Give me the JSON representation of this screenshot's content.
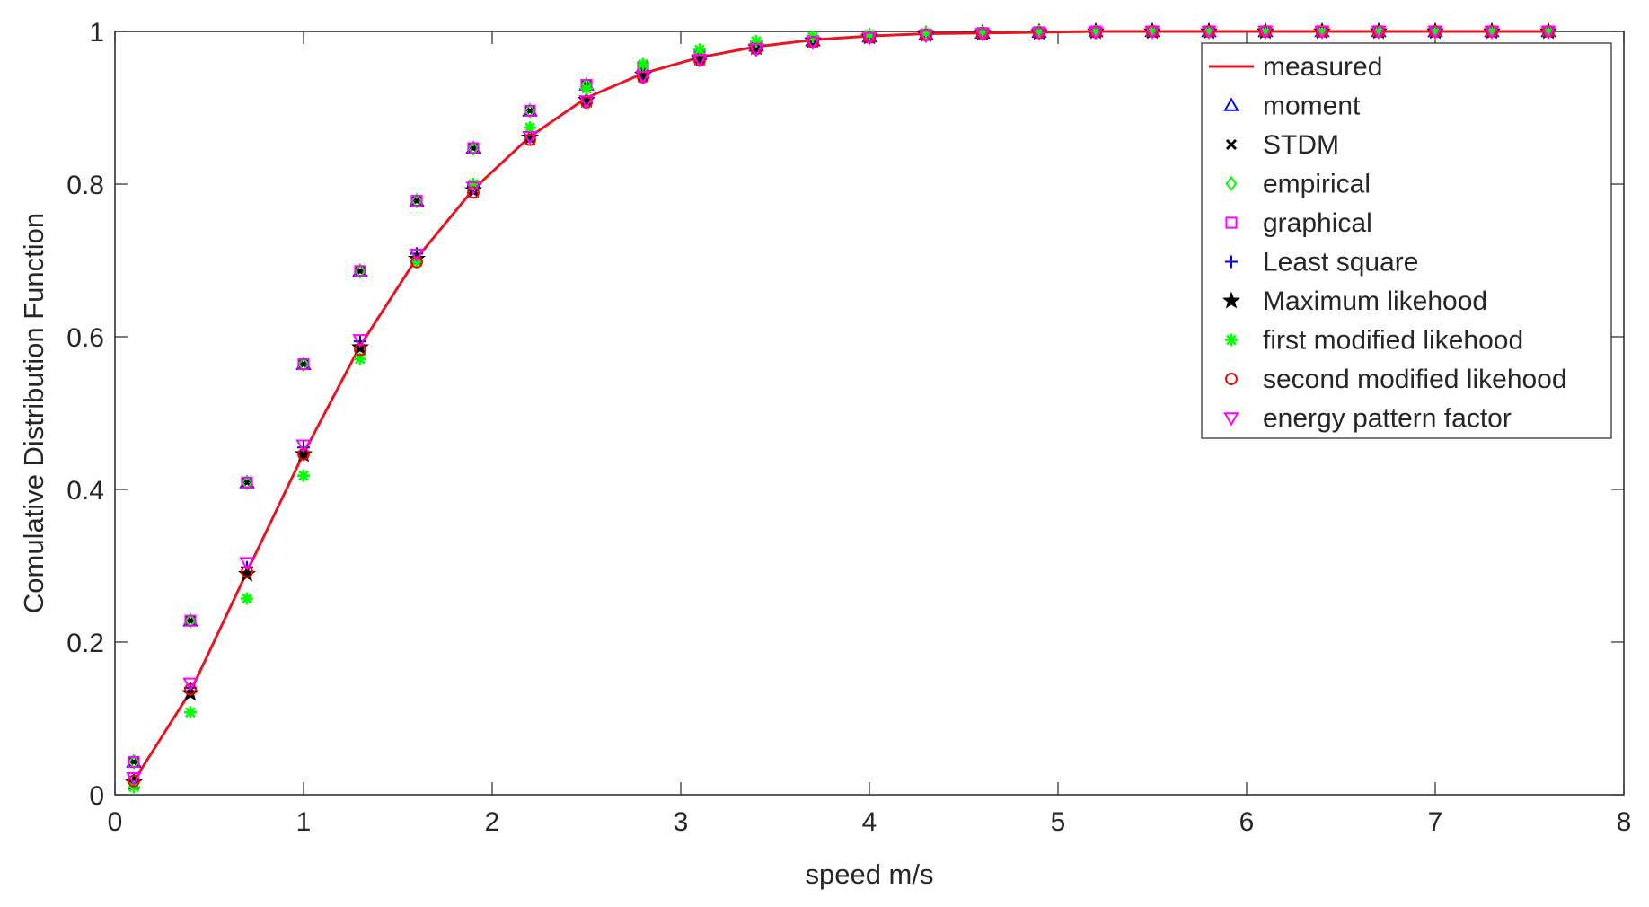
{
  "chart_data": {
    "type": "scatter",
    "xlabel": "speed m/s",
    "ylabel": "Comulative Distribution Function",
    "xlim": [
      0,
      8
    ],
    "ylim": [
      0,
      1
    ],
    "xticks": [
      0,
      1,
      2,
      3,
      4,
      5,
      6,
      7,
      8
    ],
    "yticks": [
      0,
      0.2,
      0.4,
      0.6,
      0.8,
      1
    ],
    "xtick_labels": [
      "0",
      "1",
      "2",
      "3",
      "4",
      "5",
      "6",
      "7",
      "8"
    ],
    "ytick_labels": [
      "0",
      "0.2",
      "0.4",
      "0.6",
      "0.8",
      "1"
    ],
    "grid": false,
    "legend_position": "top-right",
    "x": [
      0.1,
      0.4,
      0.7,
      1.0,
      1.3,
      1.6,
      1.9,
      2.2,
      2.5,
      2.8,
      3.1,
      3.4,
      3.7,
      4.0,
      4.3,
      4.6,
      4.9,
      5.2,
      5.5,
      5.8,
      6.1,
      6.4,
      6.7,
      7.0,
      7.3,
      7.6
    ],
    "series": [
      {
        "name": "measured",
        "style": "line",
        "color": "#e8141e",
        "values": [
          0.018,
          0.135,
          0.292,
          0.447,
          0.588,
          0.703,
          0.793,
          0.862,
          0.913,
          0.945,
          0.966,
          0.98,
          0.989,
          0.994,
          0.997,
          0.998,
          0.999,
          1.0,
          1.0,
          1.0,
          1.0,
          1.0,
          1.0,
          1.0,
          1.0,
          1.0
        ]
      },
      {
        "name": "moment",
        "style": "marker",
        "marker": "triangle-up",
        "color": "#0000ff",
        "values": [
          0.043,
          0.228,
          0.409,
          0.564,
          0.686,
          0.778,
          0.847,
          0.896,
          0.93,
          0.953,
          0.97,
          0.981,
          0.988,
          0.993,
          0.996,
          0.998,
          0.999,
          1.0,
          1.0,
          1.0,
          1.0,
          1.0,
          1.0,
          1.0,
          1.0,
          1.0
        ]
      },
      {
        "name": "STDM",
        "style": "marker",
        "marker": "x",
        "color": "#000000",
        "values": [
          0.043,
          0.228,
          0.409,
          0.564,
          0.686,
          0.778,
          0.847,
          0.896,
          0.93,
          0.953,
          0.97,
          0.981,
          0.988,
          0.993,
          0.996,
          0.998,
          0.999,
          1.0,
          1.0,
          1.0,
          1.0,
          1.0,
          1.0,
          1.0,
          1.0,
          1.0
        ]
      },
      {
        "name": "empirical",
        "style": "marker",
        "marker": "diamond",
        "color": "#00ff00",
        "values": [
          0.043,
          0.228,
          0.409,
          0.564,
          0.686,
          0.778,
          0.847,
          0.896,
          0.93,
          0.953,
          0.97,
          0.981,
          0.988,
          0.993,
          0.996,
          0.998,
          0.999,
          1.0,
          1.0,
          1.0,
          1.0,
          1.0,
          1.0,
          1.0,
          1.0,
          1.0
        ]
      },
      {
        "name": "graphical",
        "style": "marker",
        "marker": "square",
        "color": "#ff00ff",
        "values": [
          0.043,
          0.228,
          0.409,
          0.564,
          0.686,
          0.778,
          0.847,
          0.896,
          0.93,
          0.953,
          0.97,
          0.981,
          0.988,
          0.993,
          0.996,
          0.998,
          0.999,
          1.0,
          1.0,
          1.0,
          1.0,
          1.0,
          1.0,
          1.0,
          1.0,
          1.0
        ]
      },
      {
        "name": "Least square",
        "style": "marker",
        "marker": "plus",
        "color": "#0000ff",
        "values": [
          0.02,
          0.14,
          0.298,
          0.455,
          0.594,
          0.709,
          0.797,
          0.864,
          0.912,
          0.944,
          0.965,
          0.979,
          0.988,
          0.993,
          0.996,
          0.998,
          0.999,
          1.0,
          1.0,
          1.0,
          1.0,
          1.0,
          1.0,
          1.0,
          1.0,
          1.0
        ]
      },
      {
        "name": "Maximum likehood",
        "style": "marker",
        "marker": "star",
        "color": "#000000",
        "values": [
          0.016,
          0.133,
          0.289,
          0.446,
          0.586,
          0.702,
          0.792,
          0.861,
          0.91,
          0.943,
          0.965,
          0.979,
          0.988,
          0.993,
          0.996,
          0.998,
          0.999,
          1.0,
          1.0,
          1.0,
          1.0,
          1.0,
          1.0,
          1.0,
          1.0,
          1.0
        ]
      },
      {
        "name": "first modified likehood",
        "style": "marker",
        "marker": "asterisk",
        "color": "#00ff00",
        "values": [
          0.01,
          0.108,
          0.257,
          0.418,
          0.571,
          0.698,
          0.8,
          0.874,
          0.925,
          0.957,
          0.976,
          0.987,
          0.993,
          0.996,
          0.998,
          0.999,
          1.0,
          1.0,
          1.0,
          1.0,
          1.0,
          1.0,
          1.0,
          1.0,
          1.0,
          1.0
        ]
      },
      {
        "name": "second modified likehood",
        "style": "marker",
        "marker": "circle",
        "color": "#ff0000",
        "values": [
          0.018,
          0.138,
          0.292,
          0.446,
          0.583,
          0.698,
          0.789,
          0.858,
          0.907,
          0.94,
          0.962,
          0.977,
          0.986,
          0.992,
          0.995,
          0.997,
          0.998,
          0.999,
          1.0,
          1.0,
          1.0,
          1.0,
          1.0,
          1.0,
          1.0,
          1.0
        ]
      },
      {
        "name": "energy pattern factor",
        "style": "marker",
        "marker": "triangle-down",
        "color": "#ff00ff",
        "values": [
          0.022,
          0.146,
          0.304,
          0.458,
          0.596,
          0.708,
          0.796,
          0.862,
          0.909,
          0.941,
          0.963,
          0.977,
          0.986,
          0.992,
          0.995,
          0.997,
          0.998,
          0.999,
          1.0,
          1.0,
          1.0,
          1.0,
          1.0,
          1.0,
          1.0,
          1.0
        ]
      }
    ]
  }
}
